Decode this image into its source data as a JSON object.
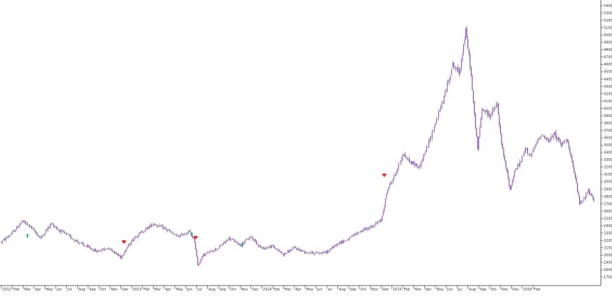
{
  "chart_data": {
    "type": "candlestick",
    "price_axis_side": "right",
    "grid": false,
    "colors": {
      "up": "#9a52c8",
      "down": "#7a3aa8",
      "wick": "#555555",
      "axis": "#333333",
      "background": "#ffffff",
      "buy_marker": "#1aa86e",
      "sell_marker": "#e82828"
    },
    "y_ticks": [
      "1700",
      "1800",
      "1900",
      "2000",
      "2100",
      "2200",
      "2300",
      "2400",
      "2500",
      "2600",
      "2700",
      "2800",
      "2900",
      "3000",
      "3100",
      "3200",
      "3300",
      "3400",
      "3500",
      "3600",
      "3700",
      "3800",
      "3900",
      "4000",
      "4100",
      "4200",
      "4300",
      "4400",
      "4500",
      "4600",
      "4700",
      "4800",
      "4900",
      "5000",
      "5100",
      "5200",
      "5300",
      "5400"
    ],
    "ylim": [
      1680,
      5420
    ],
    "x_ticks": [
      "2012",
      "Feb",
      "Mar",
      "Apr",
      "May",
      "Jun",
      "Jul",
      "Aug",
      "Sep",
      "Oct",
      "Nov",
      "Dec",
      "2013",
      "Feb",
      "Mar",
      "Apr",
      "May",
      "Jun",
      "Jul",
      "Aug",
      "Sep",
      "Oct",
      "Nov",
      "Dec",
      "2014",
      "Feb",
      "Mar",
      "Apr",
      "May",
      "Jun",
      "Jul",
      "Aug",
      "Sep",
      "Oct",
      "Nov",
      "Dec",
      "2015",
      "Feb",
      "Mar",
      "Apr",
      "May",
      "Jun",
      "Jul",
      "Aug",
      "Sep",
      "Oct",
      "Nov",
      "Dec",
      "2016",
      "Feb"
    ],
    "price_path": [
      {
        "m": 0,
        "v": 2180
      },
      {
        "m": 1,
        "v": 2300
      },
      {
        "m": 1.9,
        "v": 2460
      },
      {
        "m": 2.6,
        "v": 2400
      },
      {
        "m": 3.6,
        "v": 2230
      },
      {
        "m": 4.6,
        "v": 2430
      },
      {
        "m": 5.4,
        "v": 2330
      },
      {
        "m": 6.2,
        "v": 2260
      },
      {
        "m": 7.5,
        "v": 2140
      },
      {
        "m": 8.8,
        "v": 2050
      },
      {
        "m": 9.9,
        "v": 2100
      },
      {
        "m": 11,
        "v": 1970
      },
      {
        "m": 11.6,
        "v": 2110
      },
      {
        "m": 12.3,
        "v": 2250
      },
      {
        "m": 13.2,
        "v": 2340
      },
      {
        "m": 14,
        "v": 2430
      },
      {
        "m": 15.2,
        "v": 2350
      },
      {
        "m": 16.2,
        "v": 2250
      },
      {
        "m": 17.3,
        "v": 2320
      },
      {
        "m": 17.8,
        "v": 2200
      },
      {
        "m": 18.1,
        "v": 1860
      },
      {
        "m": 18.6,
        "v": 2000
      },
      {
        "m": 20,
        "v": 2100
      },
      {
        "m": 21,
        "v": 2230
      },
      {
        "m": 22,
        "v": 2140
      },
      {
        "m": 23,
        "v": 2250
      },
      {
        "m": 24,
        "v": 2090
      },
      {
        "m": 25,
        "v": 2120
      },
      {
        "m": 26,
        "v": 2010
      },
      {
        "m": 27,
        "v": 2100
      },
      {
        "m": 28,
        "v": 2040
      },
      {
        "m": 29,
        "v": 2030
      },
      {
        "m": 30,
        "v": 2040
      },
      {
        "m": 31,
        "v": 2160
      },
      {
        "m": 32,
        "v": 2220
      },
      {
        "m": 33,
        "v": 2320
      },
      {
        "m": 34,
        "v": 2380
      },
      {
        "m": 35,
        "v": 2470
      },
      {
        "m": 35.6,
        "v": 2900
      },
      {
        "m": 36.3,
        "v": 3100
      },
      {
        "m": 37,
        "v": 3380
      },
      {
        "m": 37.6,
        "v": 3280
      },
      {
        "m": 38.5,
        "v": 3200
      },
      {
        "m": 39.2,
        "v": 3450
      },
      {
        "m": 40,
        "v": 3800
      },
      {
        "m": 40.8,
        "v": 4150
      },
      {
        "m": 41.6,
        "v": 4600
      },
      {
        "m": 42.2,
        "v": 4480
      },
      {
        "m": 42.8,
        "v": 5050
      },
      {
        "m": 43.2,
        "v": 4600
      },
      {
        "m": 43.6,
        "v": 3900
      },
      {
        "m": 43.9,
        "v": 3450
      },
      {
        "m": 44.3,
        "v": 4000
      },
      {
        "m": 45,
        "v": 3900
      },
      {
        "m": 45.7,
        "v": 4050
      },
      {
        "m": 46.1,
        "v": 3500
      },
      {
        "m": 46.5,
        "v": 3200
      },
      {
        "m": 46.9,
        "v": 2890
      },
      {
        "m": 47.3,
        "v": 3150
      },
      {
        "m": 47.8,
        "v": 3250
      },
      {
        "m": 48.3,
        "v": 3450
      },
      {
        "m": 48.8,
        "v": 3350
      },
      {
        "m": 49.4,
        "v": 3550
      },
      {
        "m": 49.9,
        "v": 3650
      },
      {
        "m": 50.4,
        "v": 3550
      },
      {
        "m": 51,
        "v": 3650
      },
      {
        "m": 51.6,
        "v": 3500
      },
      {
        "m": 52.1,
        "v": 3600
      },
      {
        "m": 52.6,
        "v": 3250
      },
      {
        "m": 53,
        "v": 2980
      },
      {
        "m": 53.3,
        "v": 2700
      },
      {
        "m": 53.7,
        "v": 2780
      },
      {
        "m": 54.1,
        "v": 2880
      },
      {
        "m": 54.6,
        "v": 2730
      }
    ],
    "buy_signals": [
      {
        "m": 2.4,
        "v": 2265
      },
      {
        "m": 17.55,
        "v": 2285
      },
      {
        "m": 22.2,
        "v": 2135
      }
    ],
    "sell_signals": [
      {
        "m": 11.3,
        "v": 2190
      },
      {
        "m": 17.9,
        "v": 2250
      },
      {
        "m": 35.3,
        "v": 3100
      }
    ]
  }
}
